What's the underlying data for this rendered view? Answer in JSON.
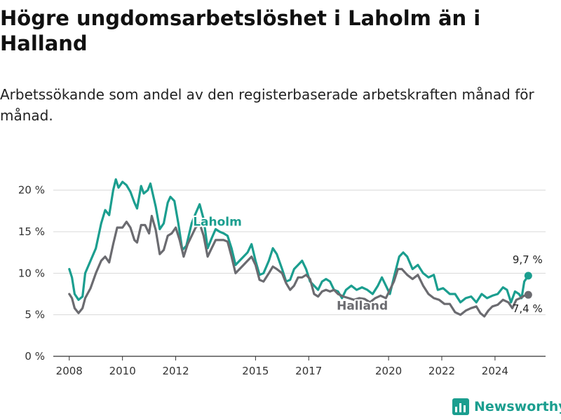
{
  "title": "Högre ungdomsarbetslöshet i Laholm än i Halland",
  "subtitle": "Arbetssökande som andel av den registerbaserade arbetskraften månad för månad.",
  "brand": {
    "name": "Newsworthy",
    "icon": "bar-chart-icon",
    "color": "#1b9e8f"
  },
  "chart_data": {
    "type": "line",
    "title": "Högre ungdomsarbetslöshet i Laholm än i Halland",
    "subtitle": "Arbetssökande som andel av den registerbaserade arbetskraften månad för månad.",
    "xlabel": "",
    "ylabel": "",
    "xlim": [
      2007.4,
      2025.9
    ],
    "ylim": [
      0,
      22.5
    ],
    "x_ticks": [
      2008,
      2010,
      2012,
      2015,
      2017,
      2020,
      2022,
      2024
    ],
    "x_tick_labels": [
      "2008",
      "2010",
      "2012",
      "2015",
      "2017",
      "2020",
      "2022",
      "2024"
    ],
    "y_ticks": [
      0,
      5,
      10,
      15,
      20
    ],
    "y_tick_labels": [
      "0 %",
      "5 %",
      "10 %",
      "15 %",
      "20 %"
    ],
    "grid": "horizontal",
    "legend": "inline labels",
    "series": [
      {
        "name": "Laholm",
        "color": "#1b9e8f",
        "end_label": "9,7 %",
        "points": [
          [
            2008.0,
            10.5
          ],
          [
            2008.1,
            9.5
          ],
          [
            2008.2,
            7.5
          ],
          [
            2008.35,
            6.8
          ],
          [
            2008.5,
            7.2
          ],
          [
            2008.6,
            10.0
          ],
          [
            2008.8,
            11.5
          ],
          [
            2009.0,
            13.0
          ],
          [
            2009.2,
            16.0
          ],
          [
            2009.35,
            17.6
          ],
          [
            2009.5,
            17.0
          ],
          [
            2009.65,
            20.0
          ],
          [
            2009.75,
            21.3
          ],
          [
            2009.85,
            20.3
          ],
          [
            2010.0,
            21.0
          ],
          [
            2010.15,
            20.6
          ],
          [
            2010.3,
            19.8
          ],
          [
            2010.45,
            18.5
          ],
          [
            2010.55,
            17.8
          ],
          [
            2010.7,
            20.5
          ],
          [
            2010.8,
            19.6
          ],
          [
            2010.95,
            20.0
          ],
          [
            2011.05,
            20.8
          ],
          [
            2011.25,
            18.0
          ],
          [
            2011.4,
            15.3
          ],
          [
            2011.55,
            16.0
          ],
          [
            2011.7,
            18.5
          ],
          [
            2011.8,
            19.2
          ],
          [
            2011.95,
            18.7
          ],
          [
            2012.1,
            16.0
          ],
          [
            2012.25,
            12.8
          ],
          [
            2012.4,
            13.3
          ],
          [
            2012.6,
            16.0
          ],
          [
            2012.75,
            17.2
          ],
          [
            2012.9,
            18.3
          ],
          [
            2013.05,
            16.5
          ],
          [
            2013.2,
            13.0
          ],
          [
            2013.35,
            14.2
          ],
          [
            2013.5,
            15.3
          ],
          [
            2013.65,
            15.0
          ],
          [
            2013.8,
            14.8
          ],
          [
            2013.95,
            14.5
          ],
          [
            2014.1,
            13.0
          ],
          [
            2014.25,
            11.0
          ],
          [
            2014.4,
            11.5
          ],
          [
            2014.55,
            12.0
          ],
          [
            2014.7,
            12.5
          ],
          [
            2014.85,
            13.5
          ],
          [
            2015.0,
            11.5
          ],
          [
            2015.15,
            9.8
          ],
          [
            2015.3,
            10.0
          ],
          [
            2015.5,
            11.5
          ],
          [
            2015.65,
            13.0
          ],
          [
            2015.8,
            12.3
          ],
          [
            2016.0,
            10.5
          ],
          [
            2016.15,
            9.0
          ],
          [
            2016.3,
            9.2
          ],
          [
            2016.45,
            10.5
          ],
          [
            2016.6,
            11.0
          ],
          [
            2016.75,
            11.5
          ],
          [
            2016.9,
            10.5
          ],
          [
            2017.05,
            9.0
          ],
          [
            2017.2,
            8.5
          ],
          [
            2017.35,
            8.0
          ],
          [
            2017.5,
            9.0
          ],
          [
            2017.65,
            9.3
          ],
          [
            2017.8,
            9.0
          ],
          [
            2017.95,
            8.0
          ],
          [
            2018.1,
            7.8
          ],
          [
            2018.25,
            7.0
          ],
          [
            2018.4,
            8.0
          ],
          [
            2018.6,
            8.5
          ],
          [
            2018.8,
            8.0
          ],
          [
            2019.0,
            8.3
          ],
          [
            2019.2,
            8.0
          ],
          [
            2019.4,
            7.5
          ],
          [
            2019.6,
            8.5
          ],
          [
            2019.75,
            9.5
          ],
          [
            2019.9,
            8.5
          ],
          [
            2020.05,
            7.5
          ],
          [
            2020.2,
            9.5
          ],
          [
            2020.4,
            12.0
          ],
          [
            2020.55,
            12.5
          ],
          [
            2020.7,
            12.0
          ],
          [
            2020.9,
            10.5
          ],
          [
            2021.1,
            11.0
          ],
          [
            2021.3,
            10.0
          ],
          [
            2021.5,
            9.5
          ],
          [
            2021.7,
            9.8
          ],
          [
            2021.85,
            8.0
          ],
          [
            2022.05,
            8.2
          ],
          [
            2022.3,
            7.5
          ],
          [
            2022.5,
            7.5
          ],
          [
            2022.7,
            6.5
          ],
          [
            2022.9,
            7.0
          ],
          [
            2023.1,
            7.2
          ],
          [
            2023.3,
            6.5
          ],
          [
            2023.5,
            7.5
          ],
          [
            2023.7,
            7.0
          ],
          [
            2023.9,
            7.3
          ],
          [
            2024.1,
            7.5
          ],
          [
            2024.3,
            8.3
          ],
          [
            2024.45,
            8.0
          ],
          [
            2024.6,
            6.5
          ],
          [
            2024.75,
            7.8
          ],
          [
            2024.9,
            7.5
          ],
          [
            2025.0,
            7.0
          ],
          [
            2025.1,
            9.0
          ],
          [
            2025.25,
            9.7
          ]
        ]
      },
      {
        "name": "Halland",
        "color": "#6b6b70",
        "end_label": "7,4 %",
        "points": [
          [
            2008.0,
            7.5
          ],
          [
            2008.1,
            7.0
          ],
          [
            2008.2,
            5.8
          ],
          [
            2008.35,
            5.2
          ],
          [
            2008.5,
            5.8
          ],
          [
            2008.6,
            7.0
          ],
          [
            2008.8,
            8.2
          ],
          [
            2009.0,
            10.0
          ],
          [
            2009.2,
            11.5
          ],
          [
            2009.35,
            12.0
          ],
          [
            2009.5,
            11.3
          ],
          [
            2009.65,
            13.5
          ],
          [
            2009.8,
            15.5
          ],
          [
            2010.0,
            15.5
          ],
          [
            2010.15,
            16.2
          ],
          [
            2010.3,
            15.5
          ],
          [
            2010.45,
            14.0
          ],
          [
            2010.55,
            13.7
          ],
          [
            2010.7,
            15.8
          ],
          [
            2010.85,
            15.8
          ],
          [
            2011.0,
            14.8
          ],
          [
            2011.1,
            16.9
          ],
          [
            2011.25,
            15.2
          ],
          [
            2011.4,
            12.3
          ],
          [
            2011.55,
            12.8
          ],
          [
            2011.7,
            14.5
          ],
          [
            2011.85,
            14.8
          ],
          [
            2012.0,
            15.5
          ],
          [
            2012.15,
            14.0
          ],
          [
            2012.3,
            12.0
          ],
          [
            2012.45,
            13.5
          ],
          [
            2012.6,
            14.5
          ],
          [
            2012.75,
            15.5
          ],
          [
            2012.9,
            16.0
          ],
          [
            2013.05,
            14.5
          ],
          [
            2013.2,
            12.0
          ],
          [
            2013.35,
            13.0
          ],
          [
            2013.5,
            14.0
          ],
          [
            2013.65,
            14.0
          ],
          [
            2013.8,
            14.0
          ],
          [
            2013.95,
            13.8
          ],
          [
            2014.1,
            12.0
          ],
          [
            2014.25,
            10.0
          ],
          [
            2014.4,
            10.5
          ],
          [
            2014.55,
            11.0
          ],
          [
            2014.7,
            11.5
          ],
          [
            2014.85,
            12.0
          ],
          [
            2015.0,
            11.0
          ],
          [
            2015.15,
            9.2
          ],
          [
            2015.3,
            9.0
          ],
          [
            2015.5,
            10.0
          ],
          [
            2015.65,
            10.8
          ],
          [
            2015.8,
            10.5
          ],
          [
            2016.0,
            10.0
          ],
          [
            2016.15,
            8.8
          ],
          [
            2016.3,
            8.0
          ],
          [
            2016.45,
            8.5
          ],
          [
            2016.6,
            9.5
          ],
          [
            2016.75,
            9.5
          ],
          [
            2016.9,
            9.8
          ],
          [
            2017.05,
            9.3
          ],
          [
            2017.2,
            7.5
          ],
          [
            2017.35,
            7.2
          ],
          [
            2017.5,
            7.8
          ],
          [
            2017.65,
            8.0
          ],
          [
            2017.8,
            7.8
          ],
          [
            2017.95,
            8.0
          ],
          [
            2018.1,
            7.5
          ],
          [
            2018.3,
            7.2
          ],
          [
            2018.5,
            7.0
          ],
          [
            2018.7,
            6.8
          ],
          [
            2018.9,
            7.0
          ],
          [
            2019.1,
            6.9
          ],
          [
            2019.3,
            6.5
          ],
          [
            2019.5,
            7.0
          ],
          [
            2019.7,
            7.3
          ],
          [
            2019.9,
            7.0
          ],
          [
            2020.05,
            8.0
          ],
          [
            2020.2,
            9.0
          ],
          [
            2020.35,
            10.5
          ],
          [
            2020.5,
            10.5
          ],
          [
            2020.7,
            9.8
          ],
          [
            2020.9,
            9.3
          ],
          [
            2021.1,
            9.8
          ],
          [
            2021.3,
            8.5
          ],
          [
            2021.5,
            7.5
          ],
          [
            2021.7,
            7.0
          ],
          [
            2021.9,
            6.8
          ],
          [
            2022.1,
            6.3
          ],
          [
            2022.3,
            6.3
          ],
          [
            2022.5,
            5.3
          ],
          [
            2022.7,
            5.0
          ],
          [
            2022.9,
            5.5
          ],
          [
            2023.1,
            5.8
          ],
          [
            2023.3,
            6.0
          ],
          [
            2023.45,
            5.2
          ],
          [
            2023.6,
            4.8
          ],
          [
            2023.75,
            5.5
          ],
          [
            2023.9,
            6.0
          ],
          [
            2024.1,
            6.2
          ],
          [
            2024.3,
            6.8
          ],
          [
            2024.5,
            6.5
          ],
          [
            2024.65,
            5.8
          ],
          [
            2024.8,
            6.8
          ],
          [
            2024.95,
            7.0
          ],
          [
            2025.1,
            7.3
          ],
          [
            2025.25,
            7.4
          ]
        ]
      }
    ]
  }
}
